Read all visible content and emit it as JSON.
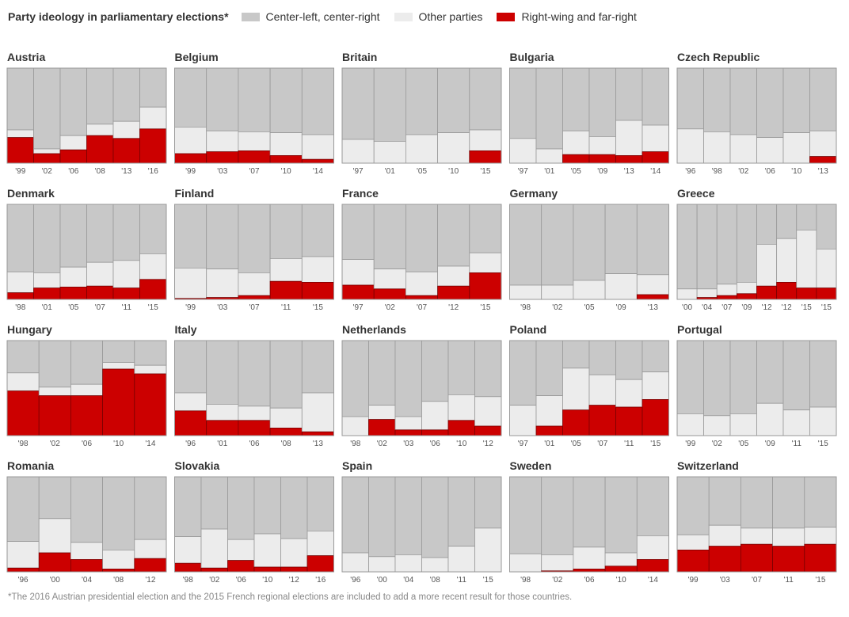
{
  "legend": {
    "title": "Party ideology in parliamentary elections*",
    "items": [
      {
        "label": "Center-left, center-right",
        "color": "#c8c8c8"
      },
      {
        "label": "Other parties",
        "color": "#ececec"
      },
      {
        "label": "Right-wing and far-right",
        "color": "#cc0000"
      }
    ]
  },
  "footnote": "*The 2016 Austrian presidential election and the 2015 French regional elections are included to add a more recent result for those countries.",
  "colors": {
    "center": "#c8c8c8",
    "other": "#ececec",
    "right": "#cc0000",
    "border": "#999999"
  },
  "chart_data": {
    "type": "bar",
    "stacked": true,
    "y_unit": "share of vote (%)",
    "ylim": [
      0,
      100
    ],
    "stack_order_bottom_to_top": [
      "right",
      "other",
      "center"
    ],
    "countries": [
      {
        "name": "Austria",
        "years": [
          "'99",
          "'02",
          "'06",
          "'08",
          "'13",
          "'16"
        ],
        "right": [
          27,
          10,
          14,
          29,
          26,
          36
        ],
        "other": [
          8,
          5,
          15,
          12,
          18,
          23
        ],
        "center": [
          65,
          85,
          71,
          59,
          56,
          41
        ]
      },
      {
        "name": "Belgium",
        "years": [
          "'99",
          "'03",
          "'07",
          "'10",
          "'14"
        ],
        "right": [
          10,
          12,
          13,
          8,
          4
        ],
        "other": [
          28,
          22,
          20,
          24,
          26
        ],
        "center": [
          62,
          66,
          67,
          68,
          70
        ]
      },
      {
        "name": "Britain",
        "years": [
          "'97",
          "'01",
          "'05",
          "'10",
          "'15"
        ],
        "right": [
          0,
          0,
          0,
          0,
          13
        ],
        "other": [
          25,
          23,
          30,
          32,
          22
        ],
        "center": [
          75,
          77,
          70,
          68,
          65
        ]
      },
      {
        "name": "Bulgaria",
        "years": [
          "'97",
          "'01",
          "'05",
          "'09",
          "'13",
          "'14"
        ],
        "right": [
          0,
          0,
          9,
          9,
          8,
          12
        ],
        "other": [
          26,
          15,
          25,
          19,
          37,
          28
        ],
        "center": [
          74,
          85,
          66,
          72,
          55,
          60
        ]
      },
      {
        "name": "Czech Republic",
        "years": [
          "'96",
          "'98",
          "'02",
          "'06",
          "'10",
          "'13"
        ],
        "right": [
          0,
          0,
          0,
          0,
          0,
          7
        ],
        "other": [
          36,
          33,
          30,
          27,
          32,
          27
        ],
        "center": [
          64,
          67,
          70,
          73,
          68,
          66
        ]
      },
      {
        "name": "Denmark",
        "years": [
          "'98",
          "'01",
          "'05",
          "'07",
          "'11",
          "'15"
        ],
        "right": [
          7,
          12,
          13,
          14,
          12,
          21
        ],
        "other": [
          22,
          16,
          21,
          25,
          29,
          27
        ],
        "center": [
          71,
          72,
          66,
          61,
          59,
          52
        ]
      },
      {
        "name": "Finland",
        "years": [
          "'99",
          "'03",
          "'07",
          "'11",
          "'15"
        ],
        "right": [
          1,
          2,
          4,
          19,
          18
        ],
        "other": [
          32,
          30,
          24,
          24,
          27
        ],
        "center": [
          67,
          68,
          72,
          57,
          55
        ]
      },
      {
        "name": "France",
        "years": [
          "'97",
          "'02",
          "'07",
          "'12",
          "'15"
        ],
        "right": [
          15,
          11,
          4,
          14,
          28
        ],
        "other": [
          27,
          21,
          25,
          21,
          21
        ],
        "center": [
          58,
          68,
          71,
          65,
          51
        ]
      },
      {
        "name": "Germany",
        "years": [
          "'98",
          "'02",
          "'05",
          "'09",
          "'13"
        ],
        "right": [
          0,
          0,
          0,
          0,
          5
        ],
        "other": [
          15,
          15,
          20,
          27,
          21
        ],
        "center": [
          85,
          85,
          80,
          73,
          74
        ]
      },
      {
        "name": "Greece",
        "years": [
          "'00",
          "'04",
          "'07",
          "'09",
          "'12",
          "'12",
          "'15",
          "'15"
        ],
        "right": [
          0,
          2,
          4,
          6,
          14,
          18,
          12,
          12
        ],
        "other": [
          11,
          9,
          12,
          12,
          44,
          46,
          61,
          41
        ],
        "center": [
          89,
          89,
          84,
          82,
          42,
          36,
          27,
          47
        ]
      },
      {
        "name": "Hungary",
        "years": [
          "'98",
          "'02",
          "'06",
          "'10",
          "'14"
        ],
        "right": [
          47,
          42,
          42,
          70,
          65
        ],
        "other": [
          19,
          9,
          12,
          7,
          9
        ],
        "center": [
          34,
          49,
          46,
          23,
          26
        ]
      },
      {
        "name": "Italy",
        "years": [
          "'96",
          "'01",
          "'06",
          "'08",
          "'13"
        ],
        "right": [
          26,
          16,
          16,
          8,
          4
        ],
        "other": [
          19,
          17,
          15,
          21,
          41
        ],
        "center": [
          55,
          67,
          69,
          71,
          55
        ]
      },
      {
        "name": "Netherlands",
        "years": [
          "'98",
          "'02",
          "'03",
          "'06",
          "'10",
          "'12"
        ],
        "right": [
          0,
          17,
          6,
          6,
          16,
          10
        ],
        "other": [
          20,
          15,
          14,
          30,
          27,
          31
        ],
        "center": [
          80,
          68,
          80,
          64,
          57,
          59
        ]
      },
      {
        "name": "Poland",
        "years": [
          "'97",
          "'01",
          "'05",
          "'07",
          "'11",
          "'15"
        ],
        "right": [
          0,
          10,
          27,
          32,
          30,
          38
        ],
        "other": [
          32,
          32,
          44,
          32,
          29,
          29
        ],
        "center": [
          68,
          58,
          29,
          36,
          41,
          33
        ]
      },
      {
        "name": "Portugal",
        "years": [
          "'99",
          "'02",
          "'05",
          "'09",
          "'11",
          "'15"
        ],
        "right": [
          0,
          0,
          0,
          0,
          0,
          0
        ],
        "other": [
          23,
          21,
          23,
          34,
          27,
          30
        ],
        "center": [
          77,
          79,
          77,
          66,
          73,
          70
        ]
      },
      {
        "name": "Romania",
        "years": [
          "'96",
          "'00",
          "'04",
          "'08",
          "'12"
        ],
        "right": [
          4,
          20,
          13,
          3,
          14
        ],
        "other": [
          28,
          36,
          18,
          20,
          20
        ],
        "center": [
          68,
          44,
          69,
          77,
          66
        ]
      },
      {
        "name": "Slovakia",
        "years": [
          "'98",
          "'02",
          "'06",
          "'10",
          "'12",
          "'16"
        ],
        "right": [
          9,
          4,
          12,
          5,
          5,
          17
        ],
        "other": [
          28,
          41,
          22,
          35,
          30,
          26
        ],
        "center": [
          63,
          55,
          66,
          60,
          65,
          57
        ]
      },
      {
        "name": "Spain",
        "years": [
          "'96",
          "'00",
          "'04",
          "'08",
          "'11",
          "'15"
        ],
        "right": [
          0,
          0,
          0,
          0,
          0,
          0
        ],
        "other": [
          20,
          16,
          18,
          15,
          27,
          46
        ],
        "center": [
          80,
          84,
          82,
          85,
          73,
          54
        ]
      },
      {
        "name": "Sweden",
        "years": [
          "'98",
          "'02",
          "'06",
          "'10",
          "'14"
        ],
        "right": [
          0,
          1,
          3,
          6,
          13
        ],
        "other": [
          19,
          17,
          23,
          14,
          25
        ],
        "center": [
          81,
          82,
          74,
          80,
          62
        ]
      },
      {
        "name": "Switzerland",
        "years": [
          "'99",
          "'03",
          "'07",
          "'11",
          "'15"
        ],
        "right": [
          23,
          27,
          29,
          27,
          29
        ],
        "other": [
          16,
          22,
          17,
          19,
          18
        ],
        "center": [
          61,
          51,
          54,
          54,
          53
        ]
      }
    ]
  }
}
